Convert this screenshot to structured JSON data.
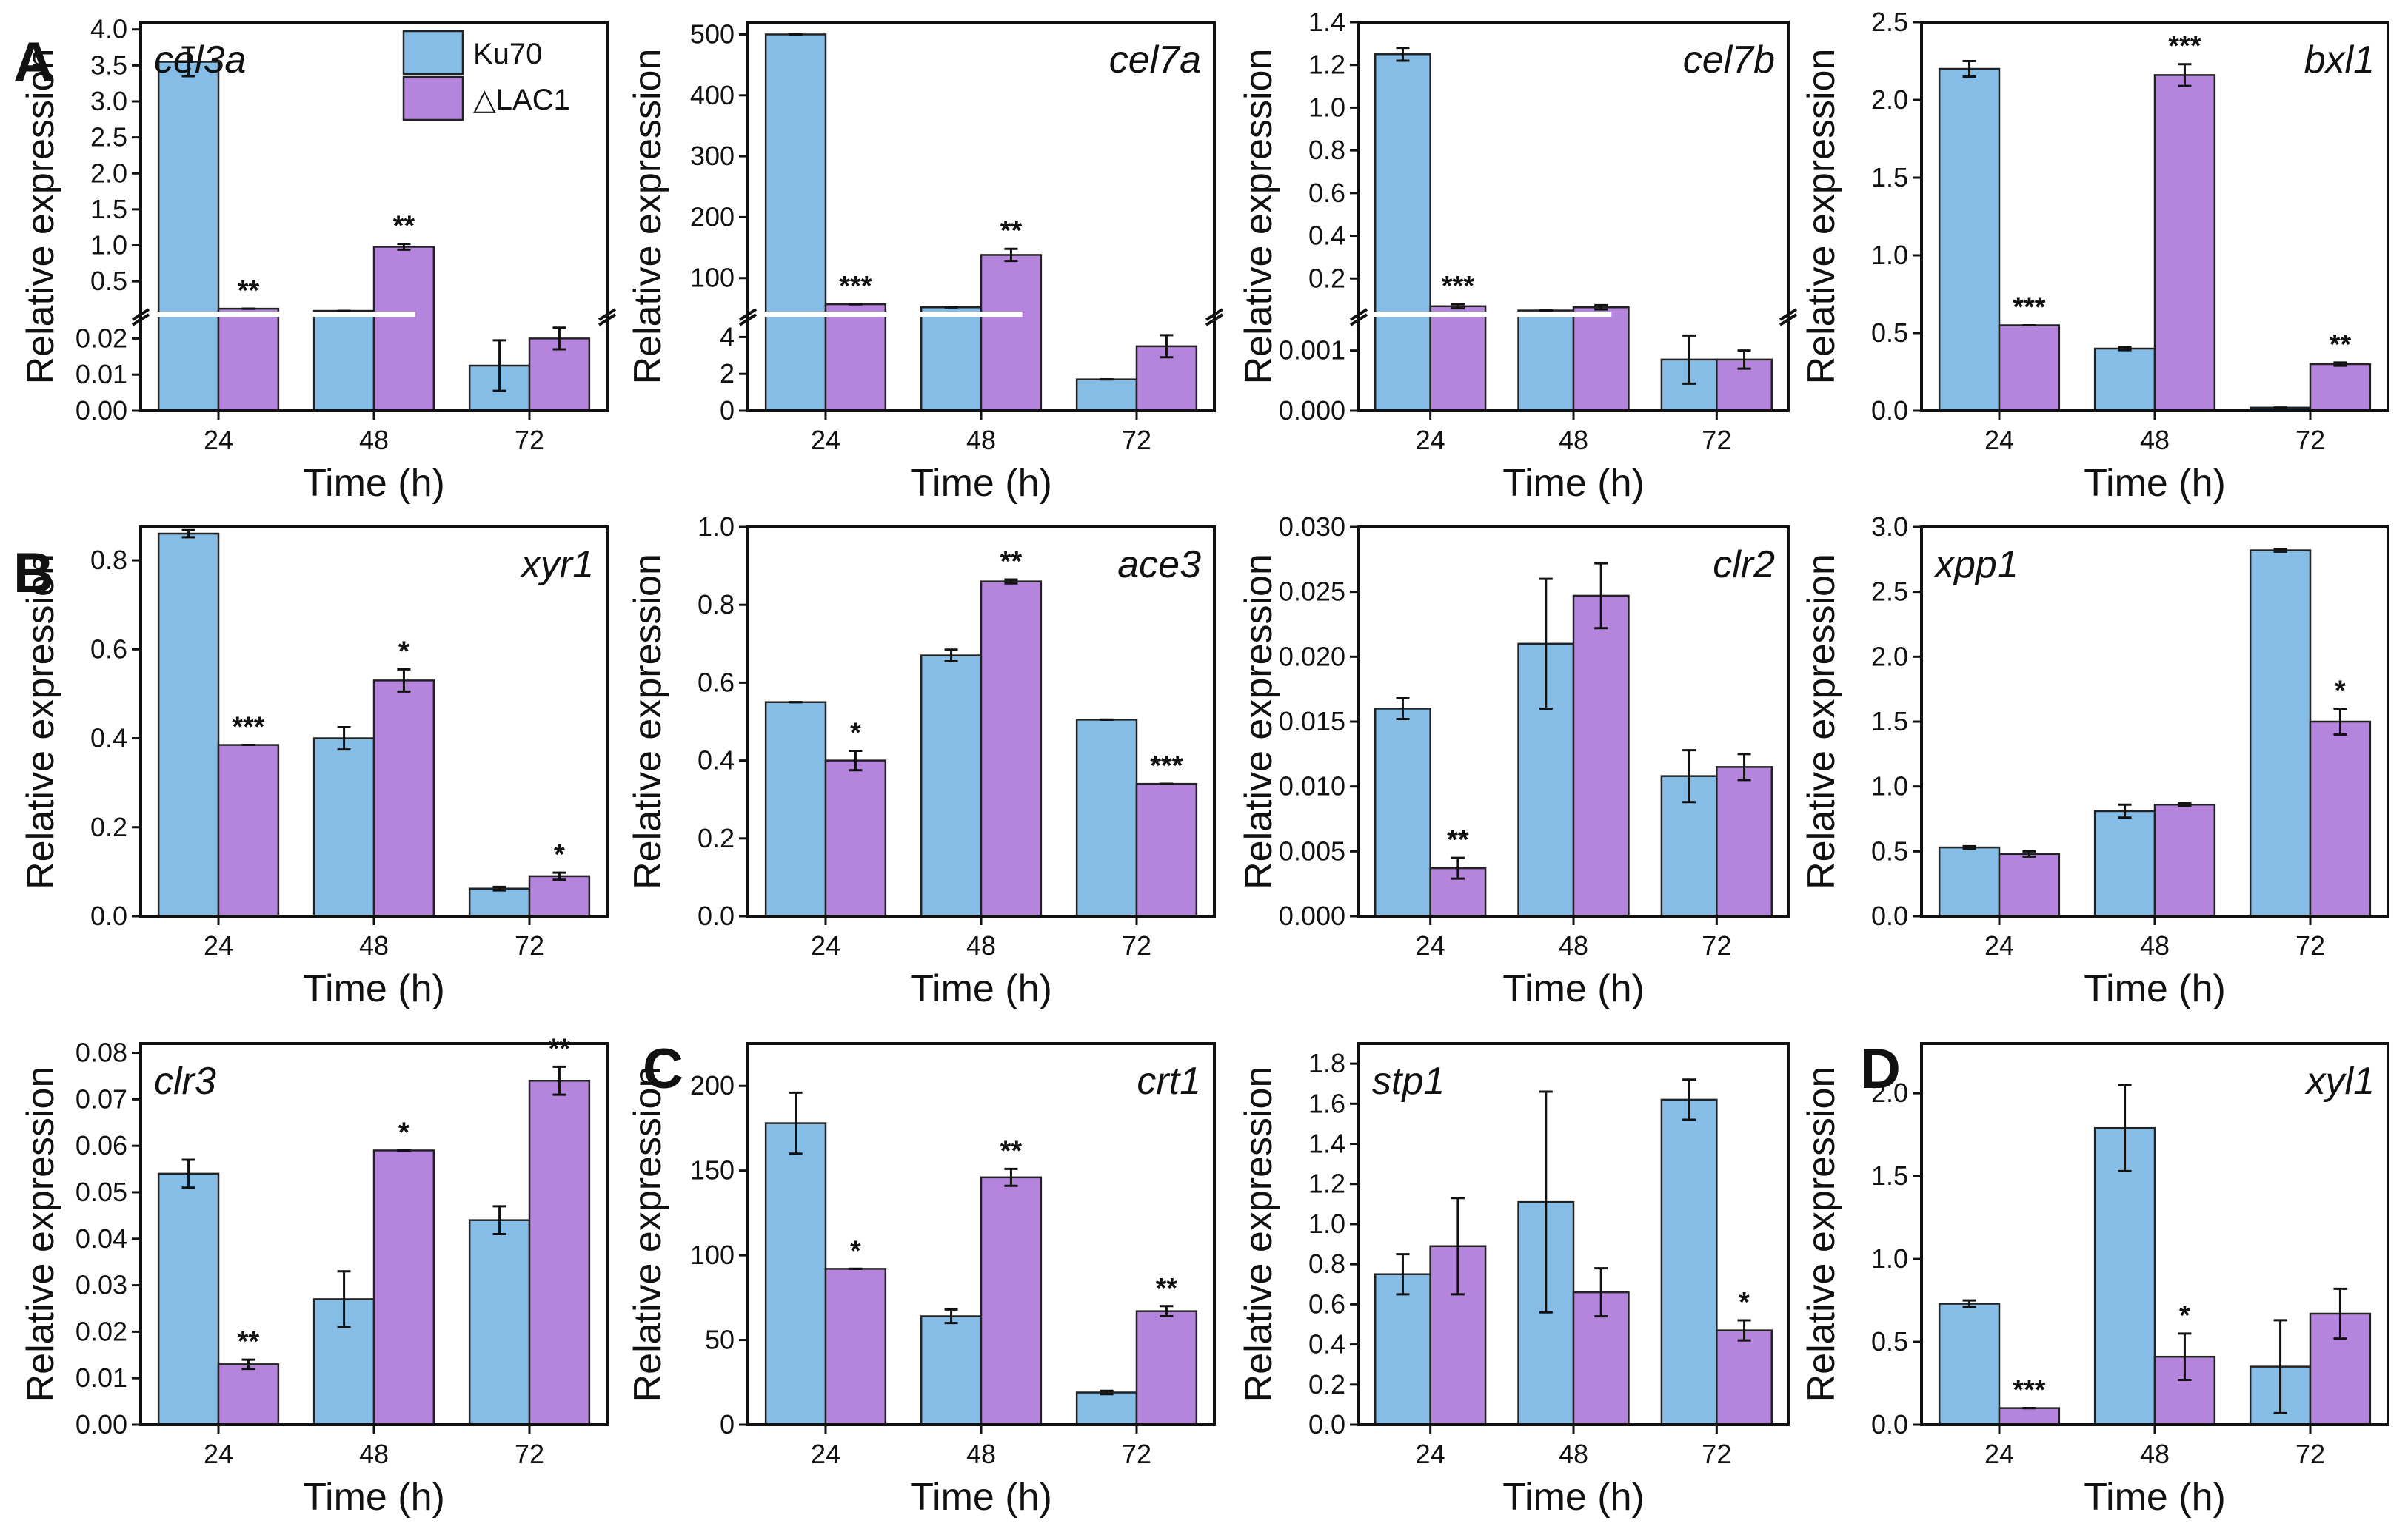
{
  "figure": {
    "panel_labels": [
      "A",
      "B",
      "C",
      "D"
    ],
    "legend": {
      "entries": [
        {
          "name": "Ku70",
          "color": "#85bde7"
        },
        {
          "name": "△LAC1",
          "color": "#b584dd"
        }
      ]
    },
    "colors": {
      "series_1": "#85bde7",
      "series_2": "#b584dd",
      "axis": "#111111"
    }
  },
  "chart_data": [
    {
      "type": "bar",
      "title": "cel3a",
      "panel_label": "A",
      "xlabel": "Time (h)",
      "ylabel": "Relative expression",
      "categories": [
        "24",
        "48",
        "72"
      ],
      "broken_axis": true,
      "lower_ylim": [
        0,
        0.025
      ],
      "lower_ticks": [
        "0.00",
        "0.01",
        "0.02"
      ],
      "upper_ylim": [
        0.08,
        4.1
      ],
      "upper_ticks": [
        "0.5",
        "1.0",
        "1.5",
        "2.0",
        "2.5",
        "3.0",
        "3.5",
        "4.0"
      ],
      "series": [
        {
          "name": "Ku70",
          "values": [
            3.55,
            0.09,
            0.0125
          ],
          "errors": [
            0.2,
            0,
            0.007
          ]
        },
        {
          "name": "△LAC1",
          "values": [
            0.12,
            0.98,
            0.02
          ],
          "errors": [
            0,
            0.04,
            0.003
          ]
        }
      ],
      "significance": [
        {
          "series": 1,
          "index": 0,
          "label": "**"
        },
        {
          "series": 1,
          "index": 1,
          "label": "**"
        }
      ]
    },
    {
      "type": "bar",
      "title": "cel7a",
      "xlabel": "Time (h)",
      "ylabel": "Relative expression",
      "categories": [
        "24",
        "48",
        "72"
      ],
      "broken_axis": true,
      "lower_ylim": [
        0,
        4.9
      ],
      "lower_ticks": [
        "0",
        "2",
        "4"
      ],
      "upper_ylim": [
        45,
        520
      ],
      "upper_ticks": [
        "100",
        "200",
        "300",
        "400",
        "500"
      ],
      "series": [
        {
          "name": "Ku70",
          "values": [
            500,
            52,
            1.7
          ],
          "errors": [
            0,
            0,
            0
          ]
        },
        {
          "name": "△LAC1",
          "values": [
            57,
            138,
            3.5
          ],
          "errors": [
            0,
            10,
            0.6
          ]
        }
      ],
      "significance": [
        {
          "series": 1,
          "index": 0,
          "label": "***"
        },
        {
          "series": 1,
          "index": 1,
          "label": "**"
        }
      ]
    },
    {
      "type": "bar",
      "title": "cel7b",
      "xlabel": "Time (h)",
      "ylabel": "Relative expression",
      "categories": [
        "24",
        "48",
        "72"
      ],
      "broken_axis": true,
      "lower_ylim": [
        0,
        0.0015
      ],
      "lower_ticks": [
        "0.000",
        "0.001"
      ],
      "upper_ylim": [
        0.045,
        1.4
      ],
      "upper_ticks": [
        "0.2",
        "0.4",
        "0.6",
        "0.8",
        "1.0",
        "1.2",
        "1.4"
      ],
      "series": [
        {
          "name": "Ku70",
          "values": [
            1.25,
            0.05,
            0.00085
          ],
          "errors": [
            0.03,
            0,
            0.0004
          ]
        },
        {
          "name": "△LAC1",
          "values": [
            0.07,
            0.065,
            0.00085
          ],
          "errors": [
            0.01,
            0.01,
            0.00015
          ]
        }
      ],
      "significance": [
        {
          "series": 1,
          "index": 0,
          "label": "***"
        }
      ]
    },
    {
      "type": "bar",
      "title": "bxl1",
      "xlabel": "Time (h)",
      "ylabel": "Relative expression",
      "categories": [
        "24",
        "48",
        "72"
      ],
      "ylim": [
        0,
        2.5
      ],
      "yticks": [
        "0.0",
        "0.5",
        "1.0",
        "1.5",
        "2.0",
        "2.5"
      ],
      "series": [
        {
          "name": "Ku70",
          "values": [
            2.2,
            0.4,
            0.02
          ],
          "errors": [
            0.05,
            0.01,
            0
          ]
        },
        {
          "name": "△LAC1",
          "values": [
            0.55,
            2.16,
            0.3
          ],
          "errors": [
            0,
            0.07,
            0.01
          ]
        }
      ],
      "significance": [
        {
          "series": 1,
          "index": 0,
          "label": "***"
        },
        {
          "series": 1,
          "index": 1,
          "label": "***"
        },
        {
          "series": 1,
          "index": 2,
          "label": "**"
        }
      ]
    },
    {
      "type": "bar",
      "title": "xyr1",
      "panel_label": "B",
      "xlabel": "Time (h)",
      "ylabel": "Relative expression",
      "categories": [
        "24",
        "48",
        "72"
      ],
      "ylim": [
        0,
        0.875
      ],
      "yticks": [
        "0.0",
        "0.2",
        "0.4",
        "0.6",
        "0.8"
      ],
      "series": [
        {
          "name": "Ku70",
          "values": [
            0.86,
            0.4,
            0.062
          ],
          "errors": [
            0.008,
            0.025,
            0.004
          ]
        },
        {
          "name": "△LAC1",
          "values": [
            0.385,
            0.53,
            0.09
          ],
          "errors": [
            0,
            0.025,
            0.008
          ]
        }
      ],
      "significance": [
        {
          "series": 1,
          "index": 0,
          "label": "***"
        },
        {
          "series": 1,
          "index": 1,
          "label": "*"
        },
        {
          "series": 1,
          "index": 2,
          "label": "*"
        }
      ]
    },
    {
      "type": "bar",
      "title": "ace3",
      "xlabel": "Time (h)",
      "ylabel": "Relative expression",
      "categories": [
        "24",
        "48",
        "72"
      ],
      "ylim": [
        0,
        1.0
      ],
      "yticks": [
        "0.0",
        "0.2",
        "0.4",
        "0.6",
        "0.8",
        "1.0"
      ],
      "series": [
        {
          "name": "Ku70",
          "values": [
            0.55,
            0.67,
            0.505
          ],
          "errors": [
            0,
            0.015,
            0
          ]
        },
        {
          "name": "△LAC1",
          "values": [
            0.4,
            0.86,
            0.34
          ],
          "errors": [
            0.025,
            0.005,
            0
          ]
        }
      ],
      "significance": [
        {
          "series": 1,
          "index": 0,
          "label": "*"
        },
        {
          "series": 1,
          "index": 1,
          "label": "**"
        },
        {
          "series": 1,
          "index": 2,
          "label": "***"
        }
      ]
    },
    {
      "type": "bar",
      "title": "clr2",
      "xlabel": "Time (h)",
      "ylabel": "Relative expression",
      "categories": [
        "24",
        "48",
        "72"
      ],
      "ylim": [
        0,
        0.03
      ],
      "yticks": [
        "0.000",
        "0.005",
        "0.010",
        "0.015",
        "0.020",
        "0.025",
        "0.030"
      ],
      "series": [
        {
          "name": "Ku70",
          "values": [
            0.016,
            0.021,
            0.0108
          ],
          "errors": [
            0.0008,
            0.005,
            0.002
          ]
        },
        {
          "name": "△LAC1",
          "values": [
            0.0037,
            0.0247,
            0.0115
          ],
          "errors": [
            0.0008,
            0.0025,
            0.001
          ]
        }
      ],
      "significance": [
        {
          "series": 1,
          "index": 0,
          "label": "**"
        }
      ]
    },
    {
      "type": "bar",
      "title": "xpp1",
      "xlabel": "Time (h)",
      "ylabel": "Relative expression",
      "categories": [
        "24",
        "48",
        "72"
      ],
      "ylim": [
        0,
        3.0
      ],
      "yticks": [
        "0.0",
        "0.5",
        "1.0",
        "1.5",
        "2.0",
        "2.5",
        "3.0"
      ],
      "series": [
        {
          "name": "Ku70",
          "values": [
            0.53,
            0.81,
            2.82
          ],
          "errors": [
            0.01,
            0.05,
            0.01
          ]
        },
        {
          "name": "△LAC1",
          "values": [
            0.48,
            0.86,
            1.5
          ],
          "errors": [
            0.02,
            0.01,
            0.1
          ]
        }
      ],
      "significance": [
        {
          "series": 1,
          "index": 2,
          "label": "*"
        }
      ]
    },
    {
      "type": "bar",
      "title": "clr3",
      "xlabel": "Time (h)",
      "ylabel": "Relative expression",
      "categories": [
        "24",
        "48",
        "72"
      ],
      "ylim": [
        0,
        0.082
      ],
      "yticks": [
        "0.00",
        "0.01",
        "0.02",
        "0.03",
        "0.04",
        "0.05",
        "0.06",
        "0.07",
        "0.08"
      ],
      "series": [
        {
          "name": "Ku70",
          "values": [
            0.054,
            0.027,
            0.044
          ],
          "errors": [
            0.003,
            0.006,
            0.003
          ]
        },
        {
          "name": "△LAC1",
          "values": [
            0.013,
            0.059,
            0.074
          ],
          "errors": [
            0.001,
            0,
            0.003
          ]
        }
      ],
      "significance": [
        {
          "series": 1,
          "index": 0,
          "label": "**"
        },
        {
          "series": 1,
          "index": 1,
          "label": "*"
        },
        {
          "series": 1,
          "index": 2,
          "label": "**"
        }
      ]
    },
    {
      "type": "bar",
      "title": "crt1",
      "panel_label": "C",
      "xlabel": "Time (h)",
      "ylabel": "Relative expression",
      "categories": [
        "24",
        "48",
        "72"
      ],
      "ylim": [
        0,
        225
      ],
      "yticks": [
        "0",
        "50",
        "100",
        "150",
        "200"
      ],
      "series": [
        {
          "name": "Ku70",
          "values": [
            178,
            64,
            19
          ],
          "errors": [
            18,
            4,
            1
          ]
        },
        {
          "name": "△LAC1",
          "values": [
            92,
            146,
            67
          ],
          "errors": [
            0,
            5,
            3
          ]
        }
      ],
      "significance": [
        {
          "series": 1,
          "index": 0,
          "label": "*"
        },
        {
          "series": 1,
          "index": 1,
          "label": "**"
        },
        {
          "series": 1,
          "index": 2,
          "label": "**"
        }
      ]
    },
    {
      "type": "bar",
      "title": "stp1",
      "xlabel": "Time (h)",
      "ylabel": "Relative expression",
      "categories": [
        "24",
        "48",
        "72"
      ],
      "ylim": [
        0,
        1.9
      ],
      "yticks": [
        "0.0",
        "0.2",
        "0.4",
        "0.6",
        "0.8",
        "1.0",
        "1.2",
        "1.4",
        "1.6",
        "1.8"
      ],
      "series": [
        {
          "name": "Ku70",
          "values": [
            0.75,
            1.11,
            1.62
          ],
          "errors": [
            0.1,
            0.55,
            0.1
          ]
        },
        {
          "name": "△LAC1",
          "values": [
            0.89,
            0.66,
            0.47
          ],
          "errors": [
            0.24,
            0.12,
            0.05
          ]
        }
      ],
      "significance": [
        {
          "series": 1,
          "index": 2,
          "label": "*"
        }
      ]
    },
    {
      "type": "bar",
      "title": "xyl1",
      "panel_label": "D",
      "xlabel": "Time (h)",
      "ylabel": "Relative expression",
      "categories": [
        "24",
        "48",
        "72"
      ],
      "ylim": [
        0,
        2.3
      ],
      "yticks": [
        "0.0",
        "0.5",
        "1.0",
        "1.5",
        "2.0"
      ],
      "series": [
        {
          "name": "Ku70",
          "values": [
            0.73,
            1.79,
            0.35
          ],
          "errors": [
            0.02,
            0.26,
            0.28
          ]
        },
        {
          "name": "△LAC1",
          "values": [
            0.1,
            0.41,
            0.67
          ],
          "errors": [
            0,
            0.14,
            0.15
          ]
        }
      ],
      "significance": [
        {
          "series": 1,
          "index": 0,
          "label": "***"
        },
        {
          "series": 1,
          "index": 1,
          "label": "*"
        }
      ]
    }
  ]
}
